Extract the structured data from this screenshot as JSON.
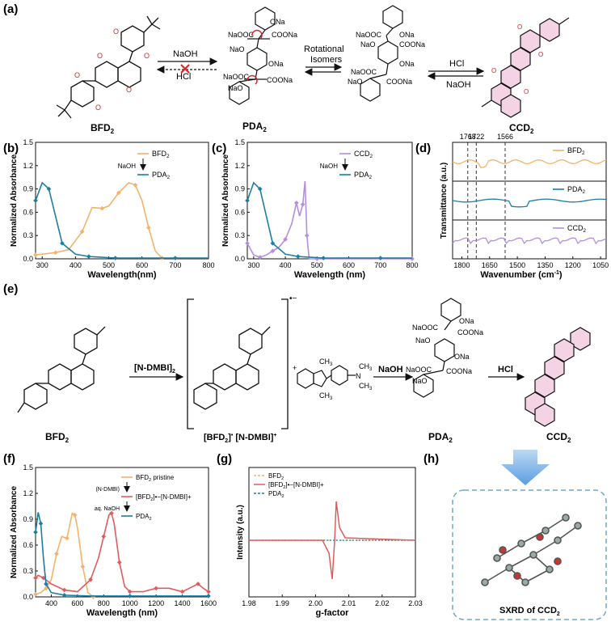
{
  "panels": {
    "a": "(a)",
    "b": "(b)",
    "c": "(c)",
    "d": "(d)",
    "e": "(e)",
    "f": "(f)",
    "g": "(g)",
    "h": "(h)"
  },
  "scheme_a": {
    "bfd2": "BFD",
    "pda2": "PDA",
    "ccd2": "CCD",
    "sub2": "2",
    "naoh": "NaOH",
    "hcl": "HCl",
    "rot1": "Rotational",
    "rot2": "Isomers",
    "hcl2": "HCl",
    "naoh2": "NaOH",
    "pda_groups": [
      "NaOOC",
      "COONa",
      "NaO",
      "ONa",
      "NaOOC",
      "COONa",
      "NaO",
      "ONa"
    ],
    "iso_groups": [
      "NaOOC",
      "ONa",
      "NaO",
      "COONa",
      "NaOOC",
      "ONa",
      "NaO",
      "COONa"
    ]
  },
  "scheme_e": {
    "bfd2": "BFD",
    "reagent": "[N-DMBI]",
    "radical_label": "[BFD",
    "radical_tail": "]",
    "ndmbi": "[N-DMBI]",
    "plus": "+",
    "minus_dot": "•−",
    "naoh": "NaOH",
    "hcl": "HCl",
    "pda2": "PDA",
    "ccd2": "CCD",
    "sub2": "2",
    "ch3": "CH",
    "n_label": "N"
  },
  "chart_data": [
    {
      "id": "b",
      "type": "line",
      "xlabel": "Wavelength(nm)",
      "ylabel": "Normalized Absorbance",
      "xlim": [
        280,
        800
      ],
      "ylim": [
        0,
        1.5
      ],
      "xticks": [
        300,
        400,
        500,
        600,
        700,
        800
      ],
      "yticks": [
        0.0,
        0.3,
        0.6,
        0.9,
        1.2,
        1.5
      ],
      "legend_arrow": "NaOH",
      "series": [
        {
          "name": "BFD",
          "sub": "2",
          "color": "#f2b36a",
          "x": [
            280,
            300,
            340,
            380,
            420,
            450,
            480,
            500,
            530,
            560,
            580,
            600,
            620,
            640,
            660
          ],
          "y": [
            0.05,
            0.06,
            0.08,
            0.12,
            0.35,
            0.66,
            0.65,
            0.68,
            0.85,
            0.98,
            0.95,
            0.75,
            0.4,
            0.1,
            0.01
          ]
        },
        {
          "name": "PDA",
          "sub": "2",
          "color": "#1a7fa0",
          "x": [
            280,
            300,
            320,
            340,
            360,
            400,
            440,
            480,
            520,
            600,
            700,
            800
          ],
          "y": [
            0.75,
            0.98,
            0.9,
            0.55,
            0.2,
            0.06,
            0.03,
            0.02,
            0.01,
            0.01,
            0.01,
            0.01
          ]
        }
      ]
    },
    {
      "id": "c",
      "type": "line",
      "xlabel": "Wavelength (nm)",
      "ylabel": "Normalized Absorbance",
      "xlim": [
        280,
        800
      ],
      "ylim": [
        0,
        1.5
      ],
      "xticks": [
        300,
        400,
        500,
        600,
        700,
        800
      ],
      "yticks": [
        0.0,
        0.3,
        0.6,
        0.9,
        1.2,
        1.5
      ],
      "legend_arrow": "NaOH",
      "series": [
        {
          "name": "CCD",
          "sub": "2",
          "color": "#b58ee0",
          "x": [
            280,
            300,
            320,
            340,
            360,
            380,
            400,
            420,
            435,
            445,
            455,
            462,
            468,
            475,
            500,
            600,
            800
          ],
          "y": [
            0.2,
            0.05,
            0.02,
            0.05,
            0.1,
            0.15,
            0.25,
            0.45,
            0.72,
            0.55,
            0.7,
            1.0,
            0.3,
            0.0,
            0.0,
            0.0,
            0.0
          ]
        },
        {
          "name": "PDA",
          "sub": "2",
          "color": "#1a7fa0",
          "x": [
            280,
            300,
            320,
            340,
            360,
            400,
            440,
            480,
            520,
            600,
            700,
            800
          ],
          "y": [
            0.75,
            0.98,
            0.9,
            0.55,
            0.2,
            0.06,
            0.03,
            0.02,
            0.01,
            0.01,
            0.01,
            0.01
          ]
        }
      ]
    },
    {
      "id": "d",
      "type": "line",
      "xlabel": "Wavenumber (cm",
      "xlabel_sup": "-1",
      "xlabel_tail": ")",
      "ylabel": "Transmittance (a.u.)",
      "xlim": [
        1850,
        1020
      ],
      "xticks": [
        1800,
        1650,
        1500,
        1350,
        1200,
        1050
      ],
      "vlines": [
        "1768",
        "1722",
        "1566"
      ],
      "series": [
        {
          "name": "BFD",
          "sub": "2",
          "color": "#f2b36a"
        },
        {
          "name": "PDA",
          "sub": "2",
          "color": "#1a7fa0"
        },
        {
          "name": "CCD",
          "sub": "2",
          "color": "#b58ee0"
        }
      ]
    },
    {
      "id": "f",
      "type": "line",
      "xlabel": "Wavelength (nm)",
      "ylabel": "Normalized Absorbance",
      "xlim": [
        280,
        1600
      ],
      "ylim": [
        0,
        1.5
      ],
      "xticks": [
        400,
        600,
        800,
        1000,
        1200,
        1400,
        1600
      ],
      "yticks": [
        0.0,
        0.3,
        0.6,
        0.9,
        1.2,
        1.5
      ],
      "arrows": [
        "(N-DMBI)",
        "aq. NaOH"
      ],
      "series": [
        {
          "name": "BFD",
          "sub": "2",
          "suffix": " pristine",
          "color": "#f2b36a",
          "x": [
            280,
            320,
            360,
            400,
            440,
            480,
            520,
            560,
            580,
            600,
            640,
            680,
            720
          ],
          "y": [
            0.03,
            0.05,
            0.1,
            0.2,
            0.5,
            0.7,
            0.68,
            0.97,
            0.95,
            0.8,
            0.35,
            0.05,
            0.0
          ]
        },
        {
          "name": "[BFD",
          "sub": "2",
          "suffix": "]•−[N-DMBI]+",
          "color": "#e05c5c",
          "x": [
            280,
            300,
            340,
            400,
            500,
            600,
            700,
            760,
            800,
            840,
            860,
            880,
            920,
            960,
            1000,
            1100,
            1200,
            1300,
            1400,
            1480,
            1520,
            1560,
            1600
          ],
          "y": [
            0.22,
            0.25,
            0.22,
            0.15,
            0.08,
            0.06,
            0.2,
            0.45,
            0.7,
            0.95,
            0.97,
            0.85,
            0.4,
            0.12,
            0.06,
            0.06,
            0.1,
            0.1,
            0.06,
            0.12,
            0.15,
            0.1,
            0.06
          ]
        },
        {
          "name": "PDA",
          "sub": "2",
          "color": "#1a7fa0",
          "x": [
            280,
            300,
            320,
            340,
            360,
            400,
            500,
            700,
            1000,
            1300,
            1600
          ],
          "y": [
            0.75,
            0.98,
            0.85,
            0.45,
            0.15,
            0.05,
            0.02,
            0.01,
            0.01,
            0.01,
            0.01
          ]
        }
      ]
    },
    {
      "id": "g",
      "type": "line",
      "xlabel": "g-factor",
      "ylabel": "Intensity (a.u.)",
      "xlim": [
        1.98,
        2.03
      ],
      "xticks": [
        "1.98",
        "1.99",
        "2.00",
        "2.01",
        "2.02",
        "2.03"
      ],
      "series": [
        {
          "name": "BFD",
          "sub": "2",
          "color": "#f2b36a"
        },
        {
          "name": "[BFD",
          "sub": "2",
          "suffix": "]•−[N-DMBI]+",
          "color": "#e05c5c"
        },
        {
          "name": "PDA",
          "sub": "2",
          "color": "#1a7fa0"
        }
      ]
    }
  ],
  "panel_h": {
    "caption": "SXRD of CCD",
    "sub": "2"
  }
}
